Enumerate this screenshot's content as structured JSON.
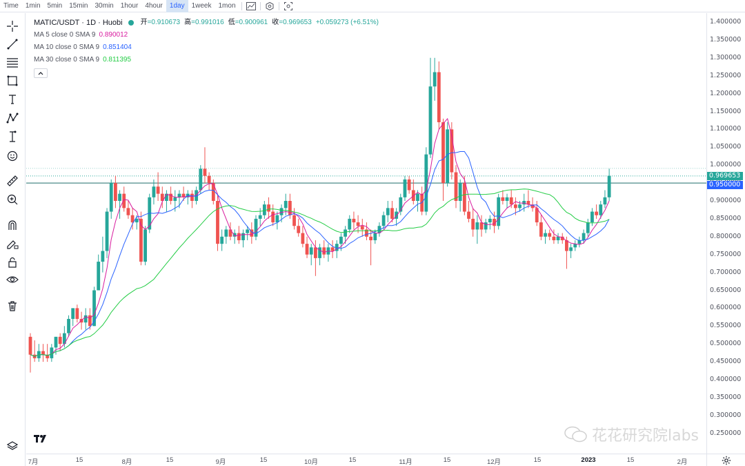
{
  "toolbar": {
    "timeframes": [
      "Time",
      "1min",
      "5min",
      "15min",
      "30min",
      "1hour",
      "4hour",
      "1day",
      "1week",
      "1mon"
    ],
    "active": "1day"
  },
  "legend": {
    "symbol": "MATIC/USDT · 1D · Huobi",
    "open_label": "开",
    "open": "=0.910673",
    "high_label": "高",
    "high": "=0.991016",
    "low_label": "低",
    "low": "=0.900961",
    "close_label": "收",
    "close": "=0.969653",
    "change": "+0.059273 (+6.51%)",
    "ma": [
      {
        "label": "MA 5 close 0 SMA 9",
        "value": "0.890012",
        "color": "#d81b9e"
      },
      {
        "label": "MA 10 close 0 SMA 9",
        "value": "0.851404",
        "color": "#2962ff"
      },
      {
        "label": "MA 30 close 0 SMA 9",
        "value": "0.811395",
        "color": "#22cc44"
      }
    ]
  },
  "price_axis": {
    "labels": [
      "1.400000",
      "1.350000",
      "1.300000",
      "1.250000",
      "1.200000",
      "1.150000",
      "1.100000",
      "1.050000",
      "1.000000",
      "0.950000",
      "0.900000",
      "0.850000",
      "0.800000",
      "0.750000",
      "0.700000",
      "0.650000",
      "0.600000",
      "0.550000",
      "0.500000",
      "0.450000",
      "0.400000",
      "0.350000",
      "0.300000",
      "0.250000"
    ],
    "last_price": "0.969653",
    "line_price": "0.950000",
    "up_color": "#26a69a",
    "down_color": "#ef5350",
    "line_color": "#2962ff"
  },
  "time_axis": {
    "labels": [
      "7月",
      "15",
      "8月",
      "15",
      "9月",
      "15",
      "10月",
      "15",
      "11月",
      "15",
      "12月",
      "15",
      "2023",
      "15",
      "2月"
    ]
  },
  "watermark": "花花研究院labs",
  "chart_data": {
    "type": "candlestick",
    "symbol": "MATIC/USDT",
    "interval": "1D",
    "ylim": [
      0.25,
      1.4
    ],
    "ma_periods": [
      5,
      10,
      30
    ],
    "candles": [
      [
        0.52,
        0.53,
        0.42,
        0.47
      ],
      [
        0.47,
        0.51,
        0.45,
        0.46
      ],
      [
        0.46,
        0.5,
        0.45,
        0.48
      ],
      [
        0.48,
        0.5,
        0.45,
        0.47
      ],
      [
        0.47,
        0.5,
        0.45,
        0.46
      ],
      [
        0.46,
        0.5,
        0.45,
        0.49
      ],
      [
        0.49,
        0.52,
        0.47,
        0.52
      ],
      [
        0.52,
        0.53,
        0.48,
        0.5
      ],
      [
        0.5,
        0.55,
        0.49,
        0.53
      ],
      [
        0.53,
        0.58,
        0.52,
        0.57
      ],
      [
        0.57,
        0.6,
        0.55,
        0.6
      ],
      [
        0.6,
        0.61,
        0.56,
        0.57
      ],
      [
        0.57,
        0.59,
        0.54,
        0.56
      ],
      [
        0.56,
        0.6,
        0.54,
        0.58
      ],
      [
        0.58,
        0.6,
        0.54,
        0.55
      ],
      [
        0.55,
        0.66,
        0.55,
        0.65
      ],
      [
        0.65,
        0.75,
        0.65,
        0.73
      ],
      [
        0.73,
        0.8,
        0.7,
        0.76
      ],
      [
        0.76,
        0.88,
        0.74,
        0.87
      ],
      [
        0.87,
        0.96,
        0.85,
        0.95
      ],
      [
        0.95,
        0.97,
        0.88,
        0.9
      ],
      [
        0.9,
        0.93,
        0.85,
        0.92
      ],
      [
        0.92,
        0.94,
        0.87,
        0.88
      ],
      [
        0.88,
        0.9,
        0.85,
        0.86
      ],
      [
        0.86,
        0.88,
        0.82,
        0.84
      ],
      [
        0.84,
        0.86,
        0.82,
        0.85
      ],
      [
        0.85,
        0.87,
        0.72,
        0.73
      ],
      [
        0.73,
        0.83,
        0.72,
        0.82
      ],
      [
        0.82,
        0.92,
        0.81,
        0.91
      ],
      [
        0.91,
        0.96,
        0.89,
        0.94
      ],
      [
        0.94,
        0.98,
        0.9,
        0.92
      ],
      [
        0.92,
        0.94,
        0.88,
        0.9
      ],
      [
        0.9,
        0.93,
        0.87,
        0.92
      ],
      [
        0.92,
        0.94,
        0.89,
        0.9
      ],
      [
        0.9,
        0.93,
        0.87,
        0.91
      ],
      [
        0.91,
        0.93,
        0.88,
        0.92
      ],
      [
        0.92,
        0.94,
        0.9,
        0.91
      ],
      [
        0.91,
        0.93,
        0.89,
        0.92
      ],
      [
        0.92,
        0.93,
        0.88,
        0.9
      ],
      [
        0.9,
        0.94,
        0.89,
        0.93
      ],
      [
        0.93,
        1.0,
        0.92,
        0.99
      ],
      [
        0.99,
        1.05,
        0.95,
        0.97
      ],
      [
        0.97,
        0.98,
        0.93,
        0.95
      ],
      [
        0.95,
        0.96,
        0.89,
        0.9
      ],
      [
        0.9,
        0.92,
        0.76,
        0.78
      ],
      [
        0.78,
        0.82,
        0.76,
        0.8
      ],
      [
        0.8,
        0.83,
        0.78,
        0.82
      ],
      [
        0.82,
        0.84,
        0.79,
        0.8
      ],
      [
        0.8,
        0.82,
        0.78,
        0.81
      ],
      [
        0.81,
        0.83,
        0.78,
        0.79
      ],
      [
        0.79,
        0.82,
        0.77,
        0.81
      ],
      [
        0.81,
        0.83,
        0.79,
        0.82
      ],
      [
        0.82,
        0.84,
        0.78,
        0.8
      ],
      [
        0.8,
        0.86,
        0.79,
        0.85
      ],
      [
        0.85,
        0.88,
        0.83,
        0.86
      ],
      [
        0.86,
        0.9,
        0.85,
        0.89
      ],
      [
        0.89,
        0.91,
        0.85,
        0.87
      ],
      [
        0.87,
        0.89,
        0.83,
        0.84
      ],
      [
        0.84,
        0.87,
        0.82,
        0.86
      ],
      [
        0.86,
        0.89,
        0.84,
        0.88
      ],
      [
        0.88,
        0.92,
        0.86,
        0.9
      ],
      [
        0.9,
        0.92,
        0.85,
        0.86
      ],
      [
        0.86,
        0.88,
        0.82,
        0.83
      ],
      [
        0.83,
        0.85,
        0.8,
        0.81
      ],
      [
        0.81,
        0.83,
        0.77,
        0.78
      ],
      [
        0.78,
        0.8,
        0.74,
        0.75
      ],
      [
        0.75,
        0.78,
        0.72,
        0.77
      ],
      [
        0.77,
        0.79,
        0.69,
        0.74
      ],
      [
        0.74,
        0.78,
        0.72,
        0.77
      ],
      [
        0.77,
        0.79,
        0.74,
        0.75
      ],
      [
        0.75,
        0.78,
        0.73,
        0.77
      ],
      [
        0.77,
        0.79,
        0.74,
        0.76
      ],
      [
        0.76,
        0.79,
        0.74,
        0.78
      ],
      [
        0.78,
        0.81,
        0.76,
        0.8
      ],
      [
        0.8,
        0.83,
        0.78,
        0.82
      ],
      [
        0.82,
        0.86,
        0.81,
        0.85
      ],
      [
        0.85,
        0.87,
        0.82,
        0.84
      ],
      [
        0.84,
        0.86,
        0.81,
        0.83
      ],
      [
        0.83,
        0.85,
        0.8,
        0.82
      ],
      [
        0.82,
        0.84,
        0.79,
        0.8
      ],
      [
        0.8,
        0.82,
        0.72,
        0.79
      ],
      [
        0.79,
        0.82,
        0.78,
        0.81
      ],
      [
        0.81,
        0.84,
        0.8,
        0.83
      ],
      [
        0.83,
        0.87,
        0.82,
        0.86
      ],
      [
        0.86,
        0.9,
        0.84,
        0.88
      ],
      [
        0.88,
        0.9,
        0.84,
        0.85
      ],
      [
        0.85,
        0.88,
        0.83,
        0.87
      ],
      [
        0.87,
        0.92,
        0.86,
        0.91
      ],
      [
        0.91,
        0.97,
        0.9,
        0.96
      ],
      [
        0.96,
        0.97,
        0.92,
        0.93
      ],
      [
        0.93,
        0.96,
        0.89,
        0.9
      ],
      [
        0.9,
        0.93,
        0.87,
        0.92
      ],
      [
        0.92,
        0.94,
        0.86,
        0.87
      ],
      [
        0.87,
        1.05,
        0.86,
        1.03
      ],
      [
        1.03,
        1.3,
        1.02,
        1.22
      ],
      [
        1.22,
        1.3,
        1.18,
        1.26
      ],
      [
        1.26,
        1.29,
        1.1,
        1.12
      ],
      [
        1.12,
        1.13,
        0.9,
        0.95
      ],
      [
        0.95,
        1.12,
        0.94,
        1.1
      ],
      [
        1.1,
        1.12,
        0.96,
        0.98
      ],
      [
        0.98,
        1.0,
        0.88,
        0.9
      ],
      [
        0.9,
        0.96,
        0.87,
        0.95
      ],
      [
        0.95,
        0.97,
        0.86,
        0.87
      ],
      [
        0.87,
        0.9,
        0.84,
        0.85
      ],
      [
        0.85,
        0.88,
        0.8,
        0.82
      ],
      [
        0.82,
        0.86,
        0.78,
        0.84
      ],
      [
        0.84,
        0.86,
        0.8,
        0.82
      ],
      [
        0.82,
        0.85,
        0.81,
        0.84
      ],
      [
        0.84,
        0.86,
        0.82,
        0.85
      ],
      [
        0.85,
        0.87,
        0.81,
        0.83
      ],
      [
        0.83,
        0.92,
        0.82,
        0.91
      ],
      [
        0.91,
        0.93,
        0.89,
        0.9
      ],
      [
        0.9,
        0.92,
        0.88,
        0.91
      ],
      [
        0.91,
        0.93,
        0.88,
        0.89
      ],
      [
        0.89,
        0.91,
        0.86,
        0.88
      ],
      [
        0.88,
        0.9,
        0.87,
        0.89
      ],
      [
        0.89,
        0.92,
        0.87,
        0.9
      ],
      [
        0.9,
        0.93,
        0.88,
        0.89
      ],
      [
        0.89,
        0.91,
        0.87,
        0.88
      ],
      [
        0.88,
        0.9,
        0.83,
        0.84
      ],
      [
        0.84,
        0.86,
        0.79,
        0.8
      ],
      [
        0.8,
        0.82,
        0.78,
        0.81
      ],
      [
        0.81,
        0.82,
        0.79,
        0.8
      ],
      [
        0.8,
        0.82,
        0.78,
        0.79
      ],
      [
        0.79,
        0.81,
        0.78,
        0.8
      ],
      [
        0.8,
        0.81,
        0.78,
        0.79
      ],
      [
        0.79,
        0.8,
        0.71,
        0.76
      ],
      [
        0.76,
        0.78,
        0.74,
        0.77
      ],
      [
        0.77,
        0.79,
        0.76,
        0.78
      ],
      [
        0.78,
        0.8,
        0.77,
        0.79
      ],
      [
        0.79,
        0.82,
        0.78,
        0.81
      ],
      [
        0.81,
        0.85,
        0.8,
        0.84
      ],
      [
        0.84,
        0.88,
        0.83,
        0.87
      ],
      [
        0.87,
        0.89,
        0.85,
        0.86
      ],
      [
        0.86,
        0.9,
        0.85,
        0.89
      ],
      [
        0.89,
        0.93,
        0.88,
        0.91
      ],
      [
        0.91,
        0.99,
        0.9,
        0.97
      ]
    ]
  }
}
